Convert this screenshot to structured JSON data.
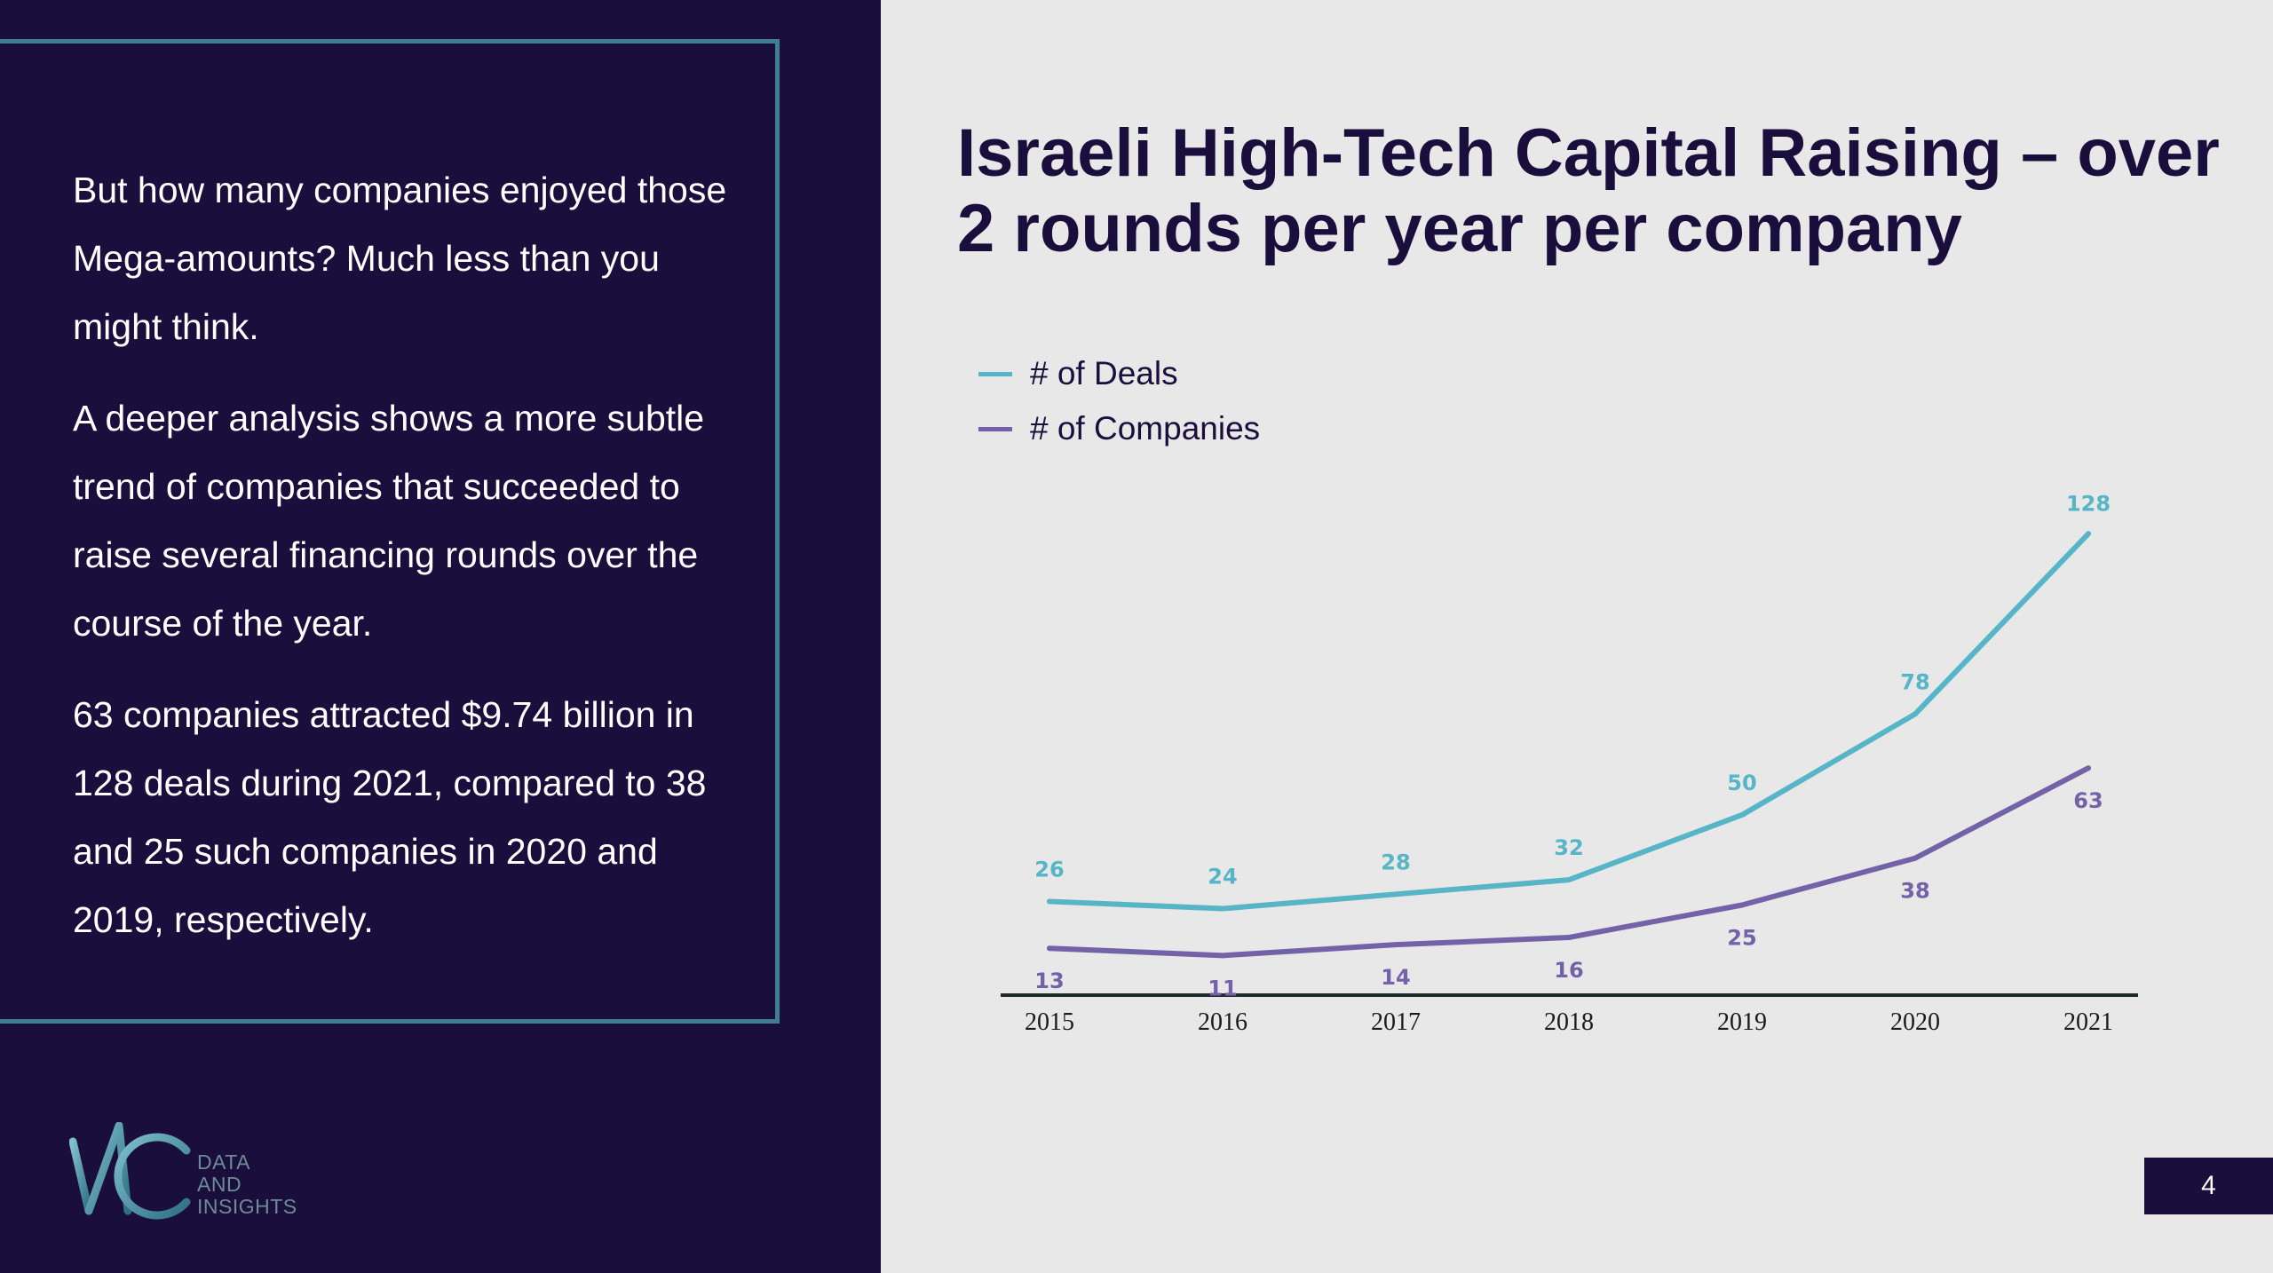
{
  "body_paragraphs": [
    "But how many companies enjoyed those Mega-amounts? Much less than you might think.",
    "A deeper analysis shows a more subtle trend of companies that succeeded to raise several financing rounds over the course of the year.",
    "63 companies attracted $9.74 billion in 128 deals during 2021, compared to 38 and 25 such companies in 2020 and 2019, respectively."
  ],
  "logo": {
    "line1": "DATA",
    "line2": "AND",
    "line3": "INSIGHTS"
  },
  "page_number": "4",
  "colors": {
    "navy": "#1a0f3c",
    "frame_teal": "#3f7f91",
    "deals": "#56b5c6",
    "companies": "#7462a8"
  },
  "chart_data": {
    "type": "line",
    "title": "Israeli High-Tech Capital Raising – over 2 rounds per year per company",
    "categories": [
      "2015",
      "2016",
      "2017",
      "2018",
      "2019",
      "2020",
      "2021"
    ],
    "series": [
      {
        "name": "# of Deals",
        "color": "#56b5c6",
        "values": [
          26,
          24,
          28,
          32,
          50,
          78,
          128
        ],
        "label_position": "above"
      },
      {
        "name": "# of Companies",
        "color": "#7462a8",
        "values": [
          13,
          11,
          14,
          16,
          25,
          38,
          63
        ],
        "label_position": "below"
      }
    ],
    "legend_position": "top-left",
    "grid": false,
    "ylim": [
      0,
      133
    ]
  }
}
